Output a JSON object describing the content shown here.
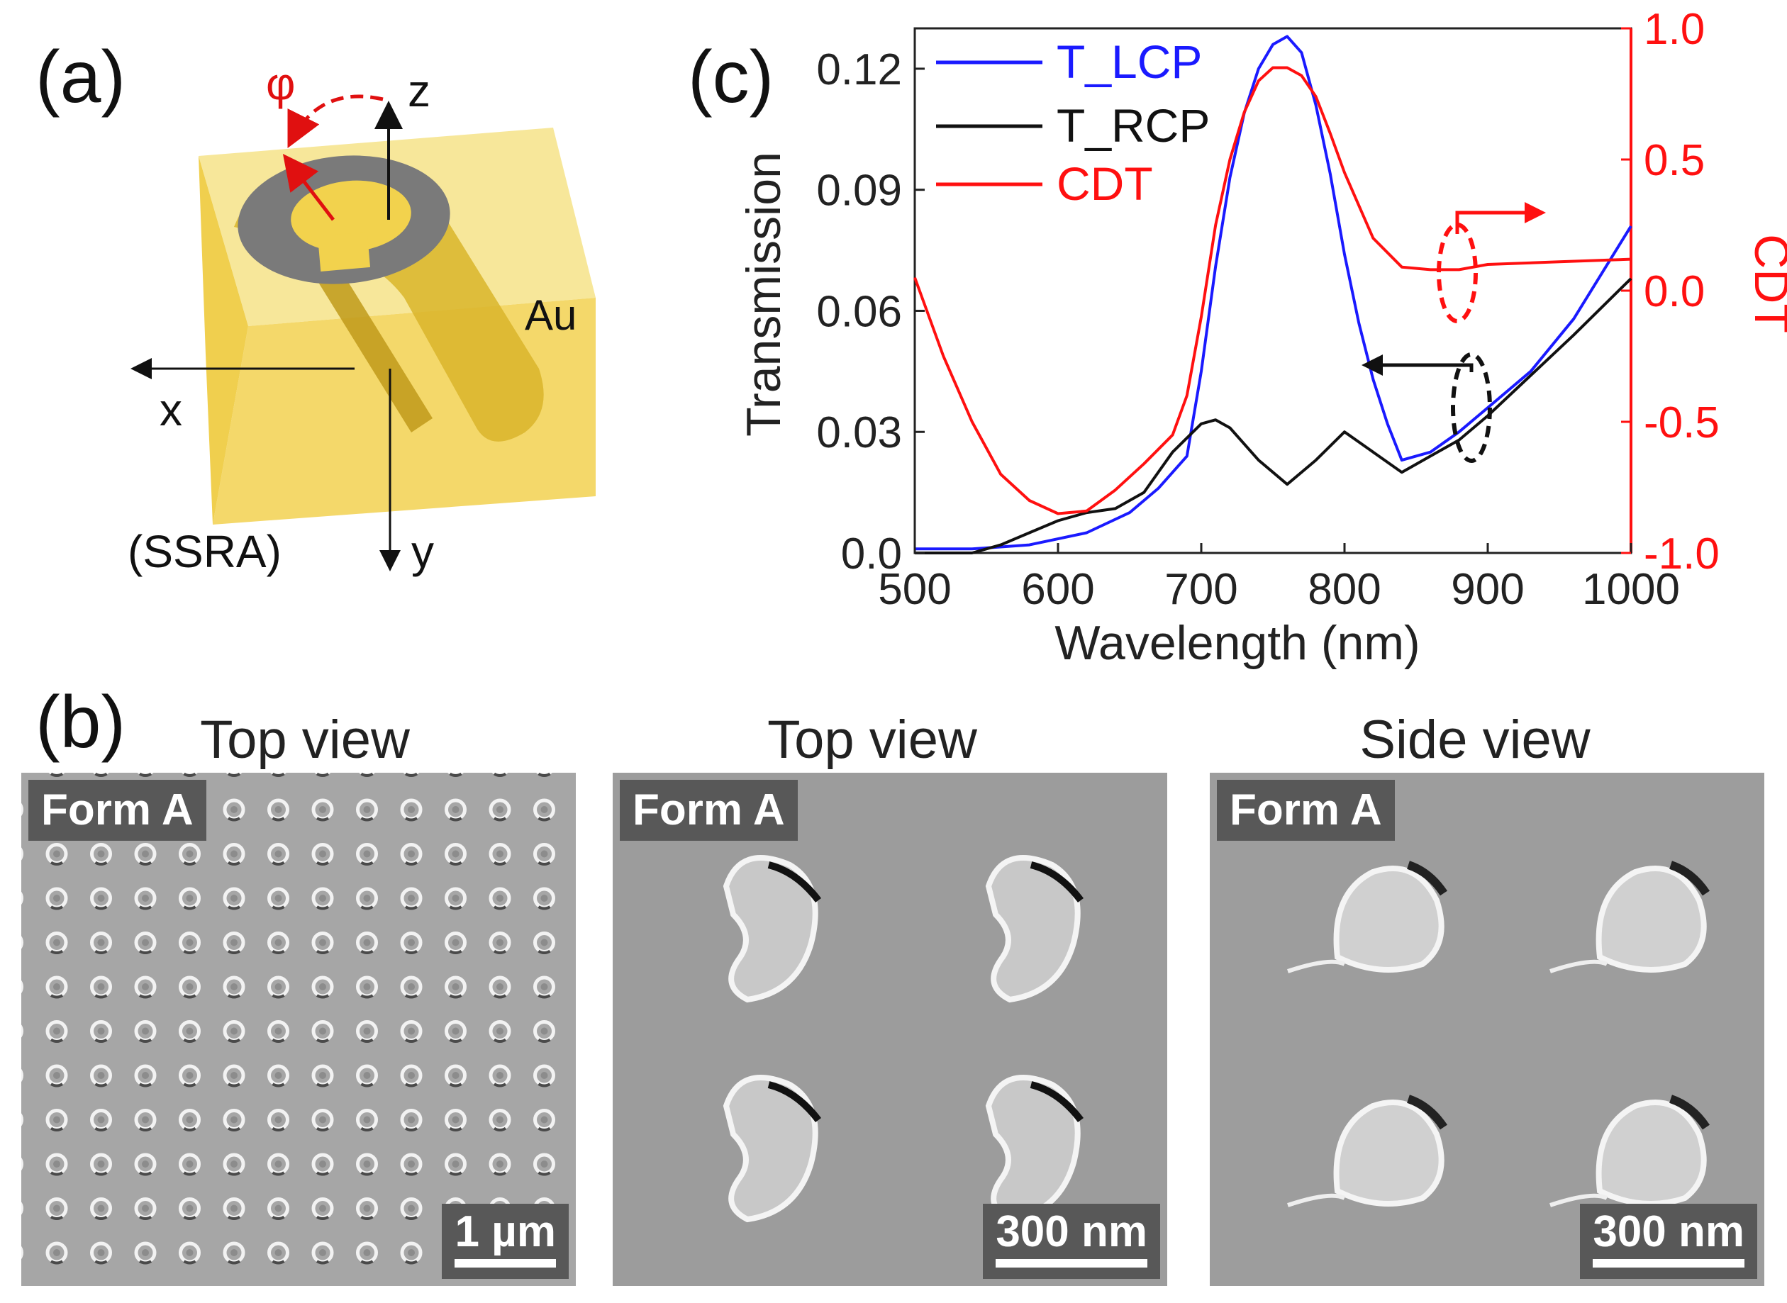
{
  "panel_labels": {
    "a": "(a)",
    "b": "(b)",
    "c": "(c)"
  },
  "panel_a": {
    "axis_x": "x",
    "axis_y": "y",
    "axis_z": "z",
    "angle": "φ",
    "material": "Au",
    "caption": "(SSRA)"
  },
  "panel_b": {
    "views": [
      {
        "title": "Top view",
        "tag": "Form A",
        "scale": "1 µm"
      },
      {
        "title": "Top view",
        "tag": "Form A",
        "scale": "300 nm"
      },
      {
        "title": "Side view",
        "tag": "Form A",
        "scale": "300 nm"
      }
    ]
  },
  "colors": {
    "lcp": "#1a1aff",
    "rcp": "#111111",
    "cdt": "#ff1010"
  },
  "chart_data": {
    "type": "line",
    "xlabel": "Wavelength (nm)",
    "ylabel": "Transmission",
    "y2label": "CDT",
    "xlim": [
      500,
      1000
    ],
    "ylim": [
      0,
      0.13
    ],
    "y2lim": [
      -1.0,
      1.0
    ],
    "xticks": [
      "500",
      "600",
      "700",
      "800",
      "900",
      "1000"
    ],
    "yticks": [
      "0.0",
      "0.03",
      "0.06",
      "0.09",
      "0.12"
    ],
    "y2ticks": [
      "-1.0",
      "-0.5",
      "0.0",
      "0.5",
      "1.0"
    ],
    "legend": [
      "T_LCP",
      "T_RCP",
      "CDT"
    ],
    "series": [
      {
        "name": "T_LCP",
        "axis": "left",
        "x": [
          500,
          540,
          580,
          620,
          650,
          670,
          690,
          700,
          710,
          720,
          730,
          740,
          750,
          760,
          770,
          780,
          790,
          800,
          810,
          820,
          830,
          840,
          860,
          880,
          900,
          930,
          960,
          1000
        ],
        "y": [
          0.001,
          0.001,
          0.002,
          0.005,
          0.01,
          0.016,
          0.024,
          0.045,
          0.071,
          0.093,
          0.109,
          0.12,
          0.126,
          0.128,
          0.124,
          0.111,
          0.094,
          0.074,
          0.057,
          0.043,
          0.032,
          0.023,
          0.025,
          0.03,
          0.036,
          0.045,
          0.058,
          0.081
        ]
      },
      {
        "name": "T_RCP",
        "axis": "left",
        "x": [
          500,
          540,
          560,
          580,
          600,
          620,
          640,
          660,
          680,
          700,
          710,
          720,
          740,
          760,
          780,
          800,
          820,
          840,
          860,
          880,
          900,
          930,
          960,
          1000
        ],
        "y": [
          0.0,
          0.0,
          0.002,
          0.005,
          0.008,
          0.01,
          0.011,
          0.015,
          0.025,
          0.032,
          0.033,
          0.031,
          0.023,
          0.017,
          0.023,
          0.03,
          0.025,
          0.02,
          0.024,
          0.028,
          0.034,
          0.044,
          0.054,
          0.068
        ]
      },
      {
        "name": "CDT",
        "axis": "right",
        "x": [
          500,
          520,
          540,
          560,
          580,
          600,
          620,
          640,
          660,
          680,
          690,
          700,
          710,
          720,
          730,
          740,
          750,
          760,
          770,
          780,
          790,
          800,
          820,
          840,
          860,
          880,
          900,
          950,
          1000
        ],
        "y": [
          0.05,
          -0.25,
          -0.5,
          -0.7,
          -0.8,
          -0.85,
          -0.84,
          -0.76,
          -0.66,
          -0.55,
          -0.4,
          -0.1,
          0.25,
          0.5,
          0.68,
          0.8,
          0.85,
          0.85,
          0.82,
          0.74,
          0.6,
          0.45,
          0.2,
          0.09,
          0.08,
          0.08,
          0.1,
          0.11,
          0.12
        ]
      }
    ]
  }
}
